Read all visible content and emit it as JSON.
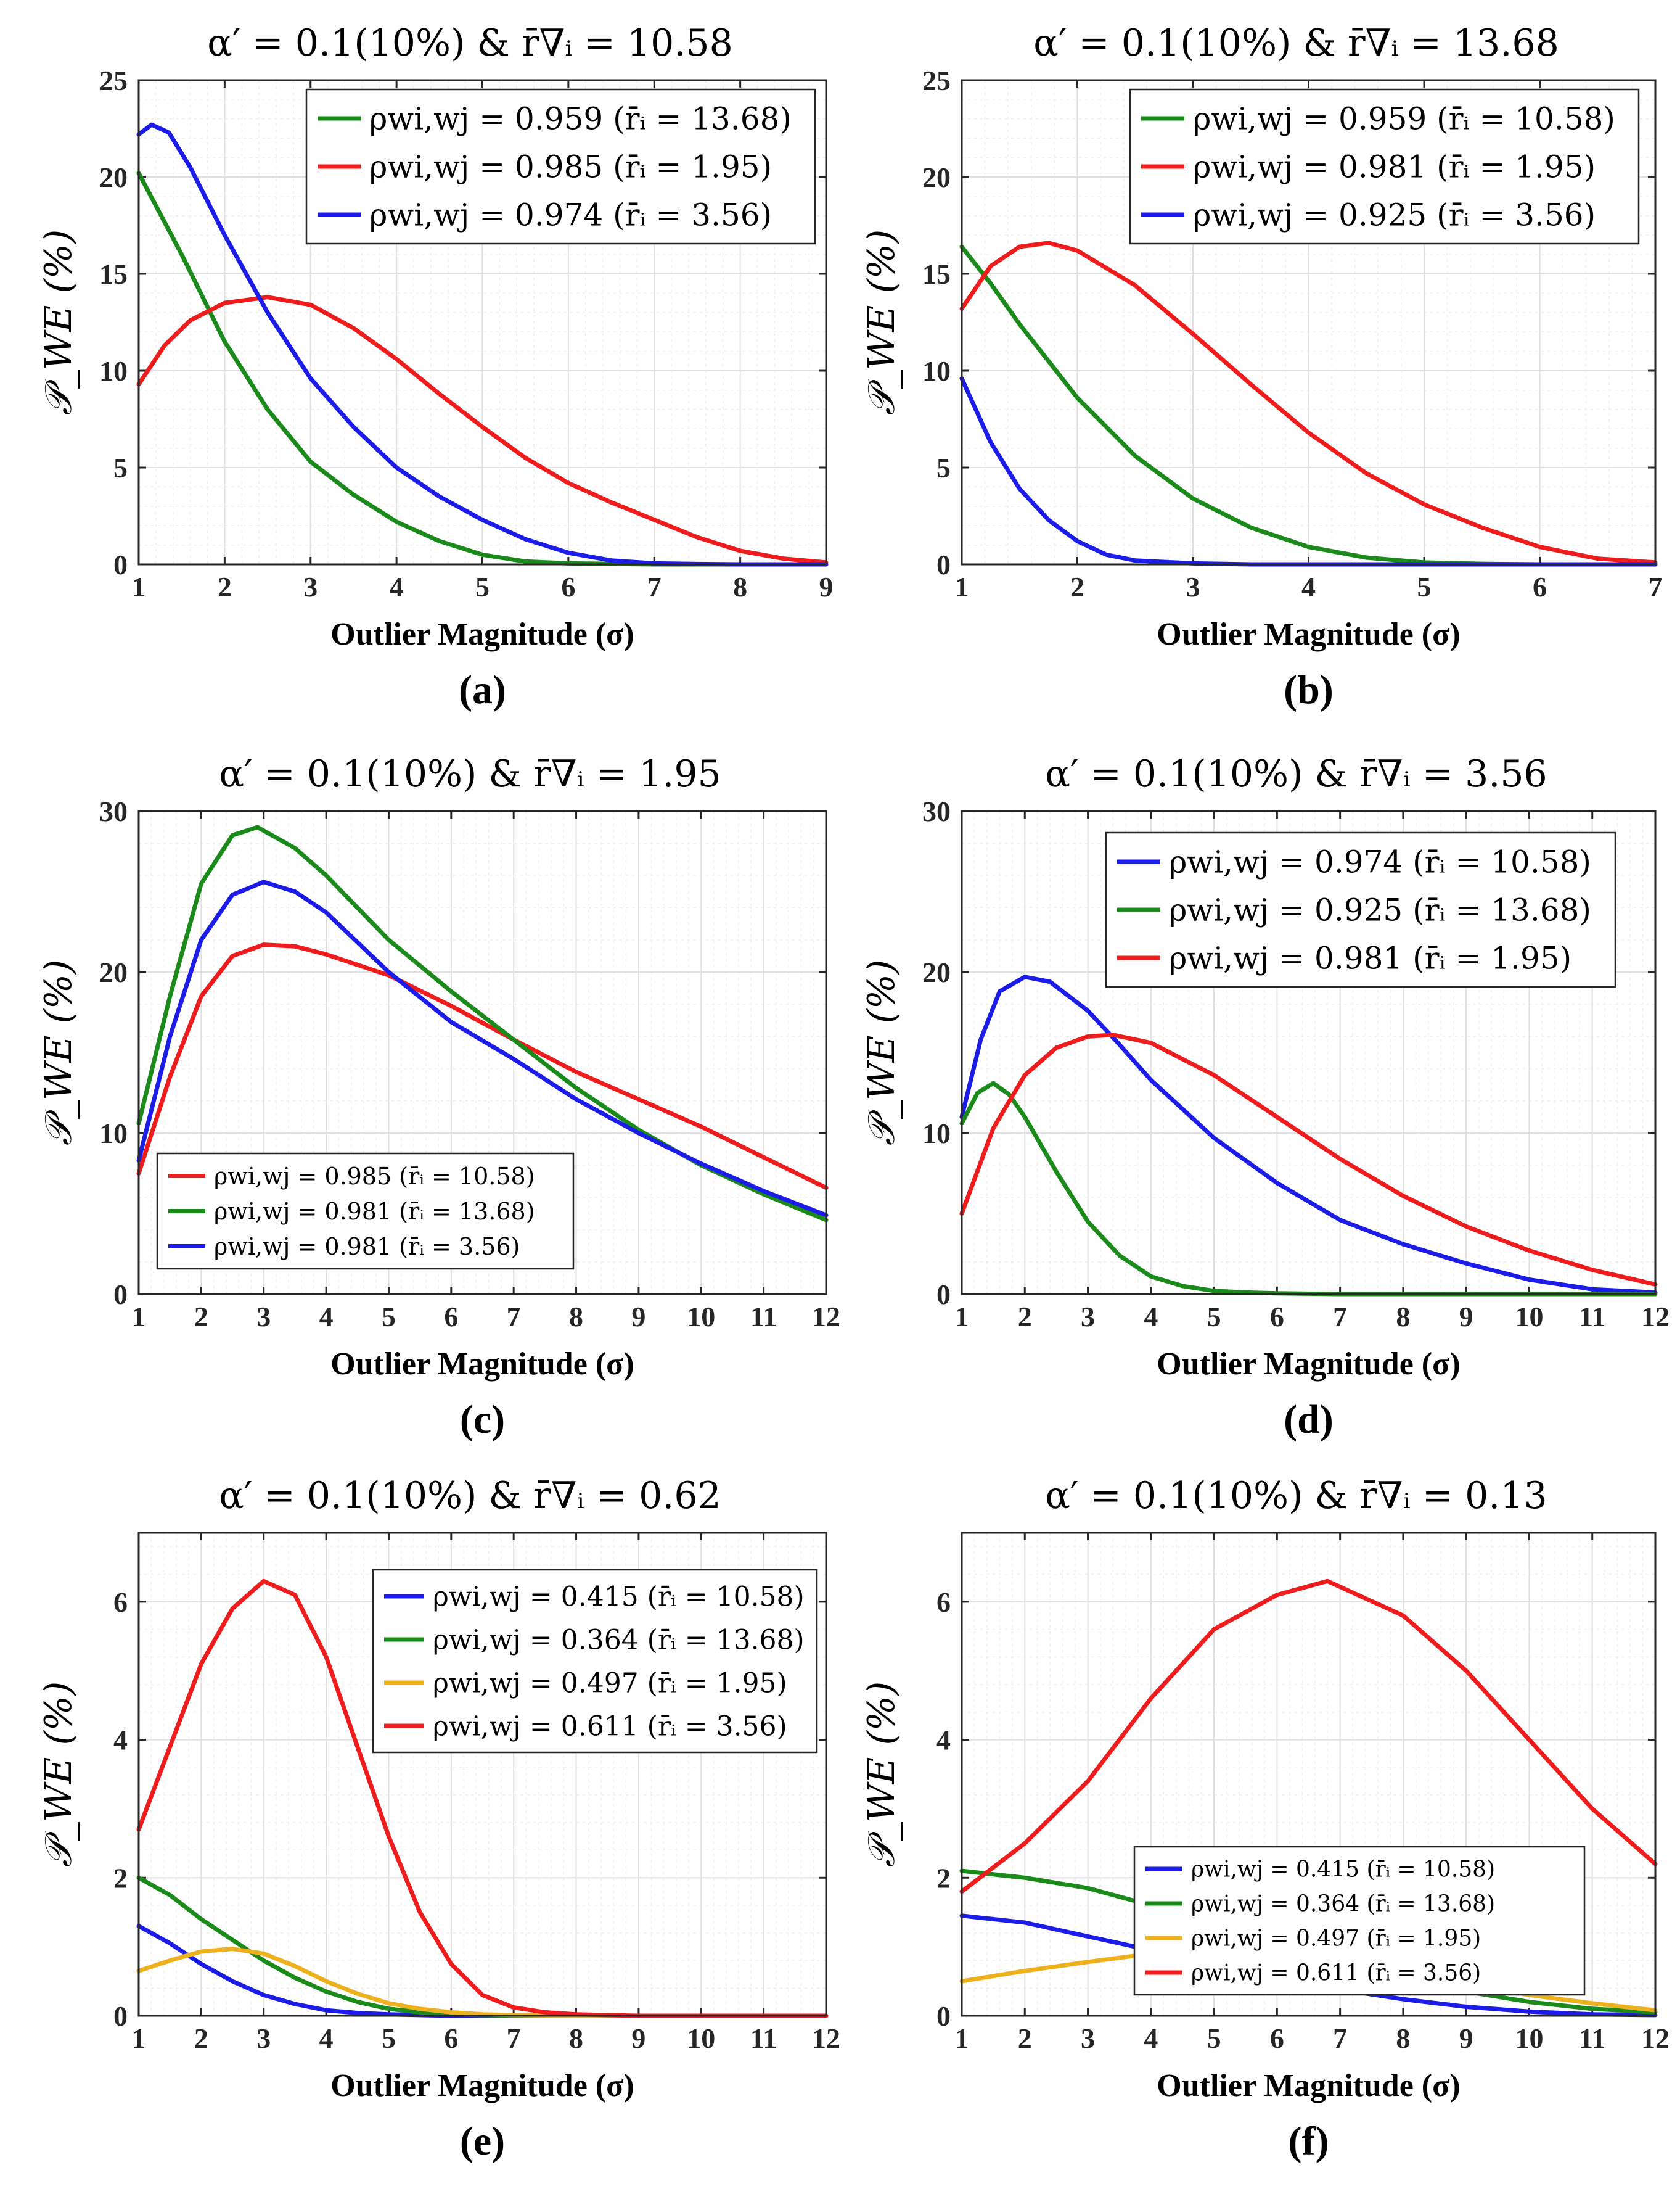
{
  "figure_labels": [
    "(a)",
    "(b)",
    "(c)",
    "(d)",
    "(e)",
    "(f)"
  ],
  "colors": {
    "green": "#1a8a1a",
    "red": "#ee1c1c",
    "blue": "#1c1ce8",
    "yellow": "#edb120"
  },
  "chart_data": [
    {
      "type": "line",
      "panel": "(a)",
      "title": "α′ = 0.1(10%) & r̄∇ᵢ = 10.58",
      "xlabel": "Outlier Magnitude (σ)",
      "ylabel": "𝒫_WE (%)",
      "xlim": [
        1,
        9
      ],
      "ylim": [
        0,
        25
      ],
      "xticks": [
        1,
        2,
        3,
        4,
        5,
        6,
        7,
        8,
        9
      ],
      "yticks": [
        0,
        5,
        10,
        15,
        20,
        25
      ],
      "legend_position": "top-right",
      "series": [
        {
          "name": "ρwi,wj = 0.959 (r̄ᵢ = 13.68)",
          "color": "green",
          "x": [
            1,
            1.5,
            2,
            2.5,
            3,
            3.5,
            4,
            4.5,
            5,
            5.5,
            6,
            7,
            8,
            9
          ],
          "values": [
            20.2,
            16,
            11.5,
            8,
            5.3,
            3.6,
            2.2,
            1.2,
            0.5,
            0.15,
            0.05,
            0,
            0,
            0
          ]
        },
        {
          "name": "ρwi,wj = 0.985 (r̄ᵢ = 1.95)",
          "color": "red",
          "x": [
            1,
            1.3,
            1.6,
            2,
            2.5,
            3,
            3.5,
            4,
            4.5,
            5,
            5.5,
            6,
            6.5,
            7,
            7.5,
            8,
            8.5,
            9
          ],
          "values": [
            9.3,
            11.3,
            12.6,
            13.5,
            13.8,
            13.4,
            12.2,
            10.6,
            8.8,
            7.1,
            5.5,
            4.2,
            3.2,
            2.3,
            1.4,
            0.7,
            0.3,
            0.1
          ]
        },
        {
          "name": "ρwi,wj = 0.974 (r̄ᵢ = 3.56)",
          "color": "blue",
          "x": [
            1,
            1.15,
            1.35,
            1.6,
            2,
            2.5,
            3,
            3.5,
            4,
            4.5,
            5,
            5.5,
            6,
            6.5,
            7,
            7.5,
            8,
            9
          ],
          "values": [
            22.2,
            22.7,
            22.3,
            20.5,
            17,
            13,
            9.6,
            7.1,
            5,
            3.5,
            2.3,
            1.3,
            0.6,
            0.2,
            0.05,
            0.02,
            0,
            0
          ]
        }
      ]
    },
    {
      "type": "line",
      "panel": "(b)",
      "title": "α′ = 0.1(10%) & r̄∇ᵢ = 13.68",
      "xlabel": "Outlier Magnitude (σ)",
      "ylabel": "𝒫_WE (%)",
      "xlim": [
        1,
        7
      ],
      "ylim": [
        0,
        25
      ],
      "xticks": [
        1,
        2,
        3,
        4,
        5,
        6,
        7
      ],
      "yticks": [
        0,
        5,
        10,
        15,
        20,
        25
      ],
      "legend_position": "top-right",
      "series": [
        {
          "name": "ρwi,wj = 0.959 (r̄ᵢ = 10.58)",
          "color": "green",
          "x": [
            1,
            1.25,
            1.5,
            1.75,
            2,
            2.5,
            3,
            3.5,
            4,
            4.5,
            5,
            5.5,
            6,
            7
          ],
          "values": [
            16.4,
            14.5,
            12.4,
            10.5,
            8.6,
            5.6,
            3.4,
            1.9,
            0.9,
            0.35,
            0.1,
            0.03,
            0,
            0
          ]
        },
        {
          "name": "ρwi,wj = 0.981 (r̄ᵢ = 1.95)",
          "color": "red",
          "x": [
            1,
            1.25,
            1.5,
            1.75,
            2,
            2.5,
            3,
            3.5,
            4,
            4.5,
            5,
            5.5,
            6,
            6.5,
            7
          ],
          "values": [
            13.2,
            15.4,
            16.4,
            16.6,
            16.2,
            14.4,
            11.9,
            9.3,
            6.8,
            4.7,
            3.1,
            1.9,
            0.9,
            0.3,
            0.1
          ]
        },
        {
          "name": "ρwi,wj = 0.925 (r̄ᵢ = 3.56)",
          "color": "blue",
          "x": [
            1,
            1.25,
            1.5,
            1.75,
            2,
            2.25,
            2.5,
            3,
            3.5,
            4,
            5,
            6,
            7
          ],
          "values": [
            9.6,
            6.3,
            3.9,
            2.3,
            1.2,
            0.5,
            0.2,
            0.05,
            0,
            0,
            0,
            0,
            0
          ]
        }
      ]
    },
    {
      "type": "line",
      "panel": "(c)",
      "title": "α′ = 0.1(10%) & r̄∇ᵢ = 1.95",
      "xlabel": "Outlier Magnitude (σ)",
      "ylabel": "𝒫_WE (%)",
      "xlim": [
        1,
        12
      ],
      "ylim": [
        0,
        30
      ],
      "xticks": [
        1,
        2,
        3,
        4,
        5,
        6,
        7,
        8,
        9,
        10,
        11,
        12
      ],
      "yticks": [
        0,
        10,
        20,
        30
      ],
      "legend_position": "bottom-left",
      "series": [
        {
          "name": "ρwi,wj = 0.985 (r̄ᵢ = 10.58)",
          "color": "red",
          "x": [
            1,
            1.5,
            2,
            2.5,
            3,
            3.5,
            4,
            5,
            6,
            7,
            8,
            9,
            10,
            11,
            12
          ],
          "values": [
            7.5,
            13.5,
            18.5,
            21,
            21.7,
            21.6,
            21.1,
            19.8,
            17.9,
            15.8,
            13.8,
            12.1,
            10.4,
            8.5,
            6.6
          ]
        },
        {
          "name": "ρwi,wj = 0.981 (r̄ᵢ = 13.68)",
          "color": "green",
          "x": [
            1,
            1.5,
            2,
            2.5,
            2.9,
            3.5,
            4,
            5,
            6,
            7,
            8,
            9,
            10,
            11,
            12
          ],
          "values": [
            10.6,
            18.5,
            25.5,
            28.5,
            29,
            27.7,
            26,
            22,
            18.8,
            15.8,
            12.8,
            10.2,
            8,
            6.2,
            4.6
          ]
        },
        {
          "name": "ρwi,wj = 0.981 (r̄ᵢ = 3.56)",
          "color": "blue",
          "x": [
            1,
            1.5,
            2,
            2.5,
            3,
            3.5,
            4,
            5,
            6,
            7,
            8,
            9,
            10,
            11,
            12
          ],
          "values": [
            8.3,
            16,
            22,
            24.8,
            25.6,
            25,
            23.7,
            20,
            16.9,
            14.6,
            12.1,
            10,
            8.1,
            6.4,
            4.9
          ]
        }
      ]
    },
    {
      "type": "line",
      "panel": "(d)",
      "title": "α′ = 0.1(10%) & r̄∇ᵢ = 3.56",
      "xlabel": "Outlier Magnitude (σ)",
      "ylabel": "𝒫_WE (%)",
      "xlim": [
        1,
        12
      ],
      "ylim": [
        0,
        30
      ],
      "xticks": [
        1,
        2,
        3,
        4,
        5,
        6,
        7,
        8,
        9,
        10,
        11,
        12
      ],
      "yticks": [
        0,
        10,
        20,
        30
      ],
      "legend_position": "top-right",
      "series": [
        {
          "name": "ρwi,wj = 0.974 (r̄ᵢ = 10.58)",
          "color": "blue",
          "x": [
            1,
            1.3,
            1.6,
            2,
            2.4,
            3,
            3.5,
            4,
            5,
            6,
            7,
            8,
            9,
            10,
            11,
            12
          ],
          "values": [
            11,
            15.8,
            18.8,
            19.7,
            19.4,
            17.6,
            15.5,
            13.3,
            9.7,
            6.9,
            4.6,
            3.1,
            1.9,
            0.9,
            0.3,
            0.1
          ]
        },
        {
          "name": "ρwi,wj = 0.925 (r̄ᵢ = 13.68)",
          "color": "green",
          "x": [
            1,
            1.25,
            1.5,
            1.75,
            2,
            2.5,
            3,
            3.5,
            4,
            4.5,
            5,
            5.5,
            6,
            7,
            8,
            12
          ],
          "values": [
            10.6,
            12.5,
            13.1,
            12.4,
            11,
            7.6,
            4.5,
            2.4,
            1.1,
            0.5,
            0.2,
            0.1,
            0.05,
            0,
            0,
            0
          ]
        },
        {
          "name": "ρwi,wj = 0.981 (r̄ᵢ = 1.95)",
          "color": "red",
          "x": [
            1,
            1.5,
            2,
            2.5,
            3,
            3.4,
            4,
            5,
            6,
            7,
            8,
            9,
            10,
            11,
            12
          ],
          "values": [
            5,
            10.3,
            13.6,
            15.3,
            16,
            16.1,
            15.6,
            13.6,
            11,
            8.4,
            6.1,
            4.2,
            2.7,
            1.5,
            0.6
          ]
        }
      ]
    },
    {
      "type": "line",
      "panel": "(e)",
      "title": "α′ = 0.1(10%) & r̄∇ᵢ = 0.62",
      "xlabel": "Outlier Magnitude (σ)",
      "ylabel": "𝒫_WE (%)",
      "xlim": [
        1,
        12
      ],
      "ylim": [
        0,
        7
      ],
      "xticks": [
        1,
        2,
        3,
        4,
        5,
        6,
        7,
        8,
        9,
        10,
        11,
        12
      ],
      "yticks": [
        0,
        2,
        4,
        6
      ],
      "legend_position": "top-right",
      "series": [
        {
          "name": "ρwi,wj = 0.415 (r̄ᵢ = 10.58)",
          "color": "blue",
          "x": [
            1,
            1.5,
            2,
            2.5,
            3,
            3.5,
            4,
            4.5,
            5,
            5.5,
            6,
            7,
            12
          ],
          "values": [
            1.3,
            1.05,
            0.75,
            0.5,
            0.3,
            0.17,
            0.08,
            0.04,
            0.02,
            0.01,
            0,
            0,
            0
          ]
        },
        {
          "name": "ρwi,wj = 0.364 (r̄ᵢ = 13.68)",
          "color": "green",
          "x": [
            1,
            1.5,
            2,
            2.5,
            3,
            3.5,
            4,
            4.5,
            5,
            5.5,
            6,
            7,
            12
          ],
          "values": [
            2,
            1.75,
            1.4,
            1.1,
            0.8,
            0.55,
            0.35,
            0.2,
            0.1,
            0.05,
            0.02,
            0,
            0
          ]
        },
        {
          "name": "ρwi,wj = 0.497 (r̄ᵢ = 1.95)",
          "color": "yellow",
          "x": [
            1,
            1.5,
            2,
            2.5,
            3,
            3.5,
            4,
            4.5,
            5,
            5.5,
            6,
            6.5,
            7,
            8,
            12
          ],
          "values": [
            0.65,
            0.8,
            0.93,
            0.97,
            0.9,
            0.72,
            0.5,
            0.32,
            0.18,
            0.1,
            0.05,
            0.02,
            0.01,
            0,
            0
          ]
        },
        {
          "name": "ρwi,wj = 0.611 (r̄ᵢ = 3.56)",
          "color": "red",
          "x": [
            1,
            1.5,
            2,
            2.5,
            3,
            3.5,
            4,
            4.5,
            5,
            5.5,
            6,
            6.5,
            7,
            7.5,
            8,
            9,
            12
          ],
          "values": [
            2.7,
            3.9,
            5.1,
            5.9,
            6.3,
            6.1,
            5.2,
            3.9,
            2.6,
            1.5,
            0.75,
            0.3,
            0.12,
            0.05,
            0.02,
            0,
            0
          ]
        }
      ]
    },
    {
      "type": "line",
      "panel": "(f)",
      "title": "α′ = 0.1(10%) & r̄∇ᵢ = 0.13",
      "xlabel": "Outlier Magnitude (σ)",
      "ylabel": "𝒫_WE (%)",
      "xlim": [
        1,
        12
      ],
      "ylim": [
        0,
        7
      ],
      "xticks": [
        1,
        2,
        3,
        4,
        5,
        6,
        7,
        8,
        9,
        10,
        11,
        12
      ],
      "yticks": [
        0,
        2,
        4,
        6
      ],
      "legend_position": "center-right",
      "series": [
        {
          "name": "ρwi,wj = 0.415 (r̄ᵢ = 10.58)",
          "color": "blue",
          "x": [
            1,
            2,
            3,
            4,
            5,
            6,
            7,
            8,
            9,
            10,
            11,
            12
          ],
          "values": [
            1.45,
            1.35,
            1.15,
            0.95,
            0.75,
            0.55,
            0.38,
            0.24,
            0.13,
            0.06,
            0.02,
            0.01
          ]
        },
        {
          "name": "ρwi,wj = 0.364 (r̄ᵢ = 13.68)",
          "color": "green",
          "x": [
            1,
            2,
            3,
            4,
            5,
            6,
            7,
            8,
            9,
            10,
            11,
            12
          ],
          "values": [
            2.1,
            2.0,
            1.85,
            1.6,
            1.35,
            1.05,
            0.8,
            0.55,
            0.35,
            0.2,
            0.1,
            0.05
          ]
        },
        {
          "name": "ρwi,wj = 0.497 (r̄ᵢ = 1.95)",
          "color": "yellow",
          "x": [
            1,
            2,
            3,
            4,
            5,
            6,
            7,
            8,
            9,
            10,
            11,
            12
          ],
          "values": [
            0.5,
            0.65,
            0.78,
            0.9,
            1.0,
            0.95,
            0.82,
            0.65,
            0.47,
            0.3,
            0.18,
            0.08
          ]
        },
        {
          "name": "ρwi,wj = 0.611 (r̄ᵢ = 3.56)",
          "color": "red",
          "x": [
            1,
            2,
            3,
            4,
            5,
            6,
            6.8,
            8,
            9,
            10,
            11,
            12
          ],
          "values": [
            1.8,
            2.5,
            3.4,
            4.6,
            5.6,
            6.1,
            6.3,
            5.8,
            5.0,
            4.0,
            3.0,
            2.2
          ]
        }
      ]
    }
  ]
}
